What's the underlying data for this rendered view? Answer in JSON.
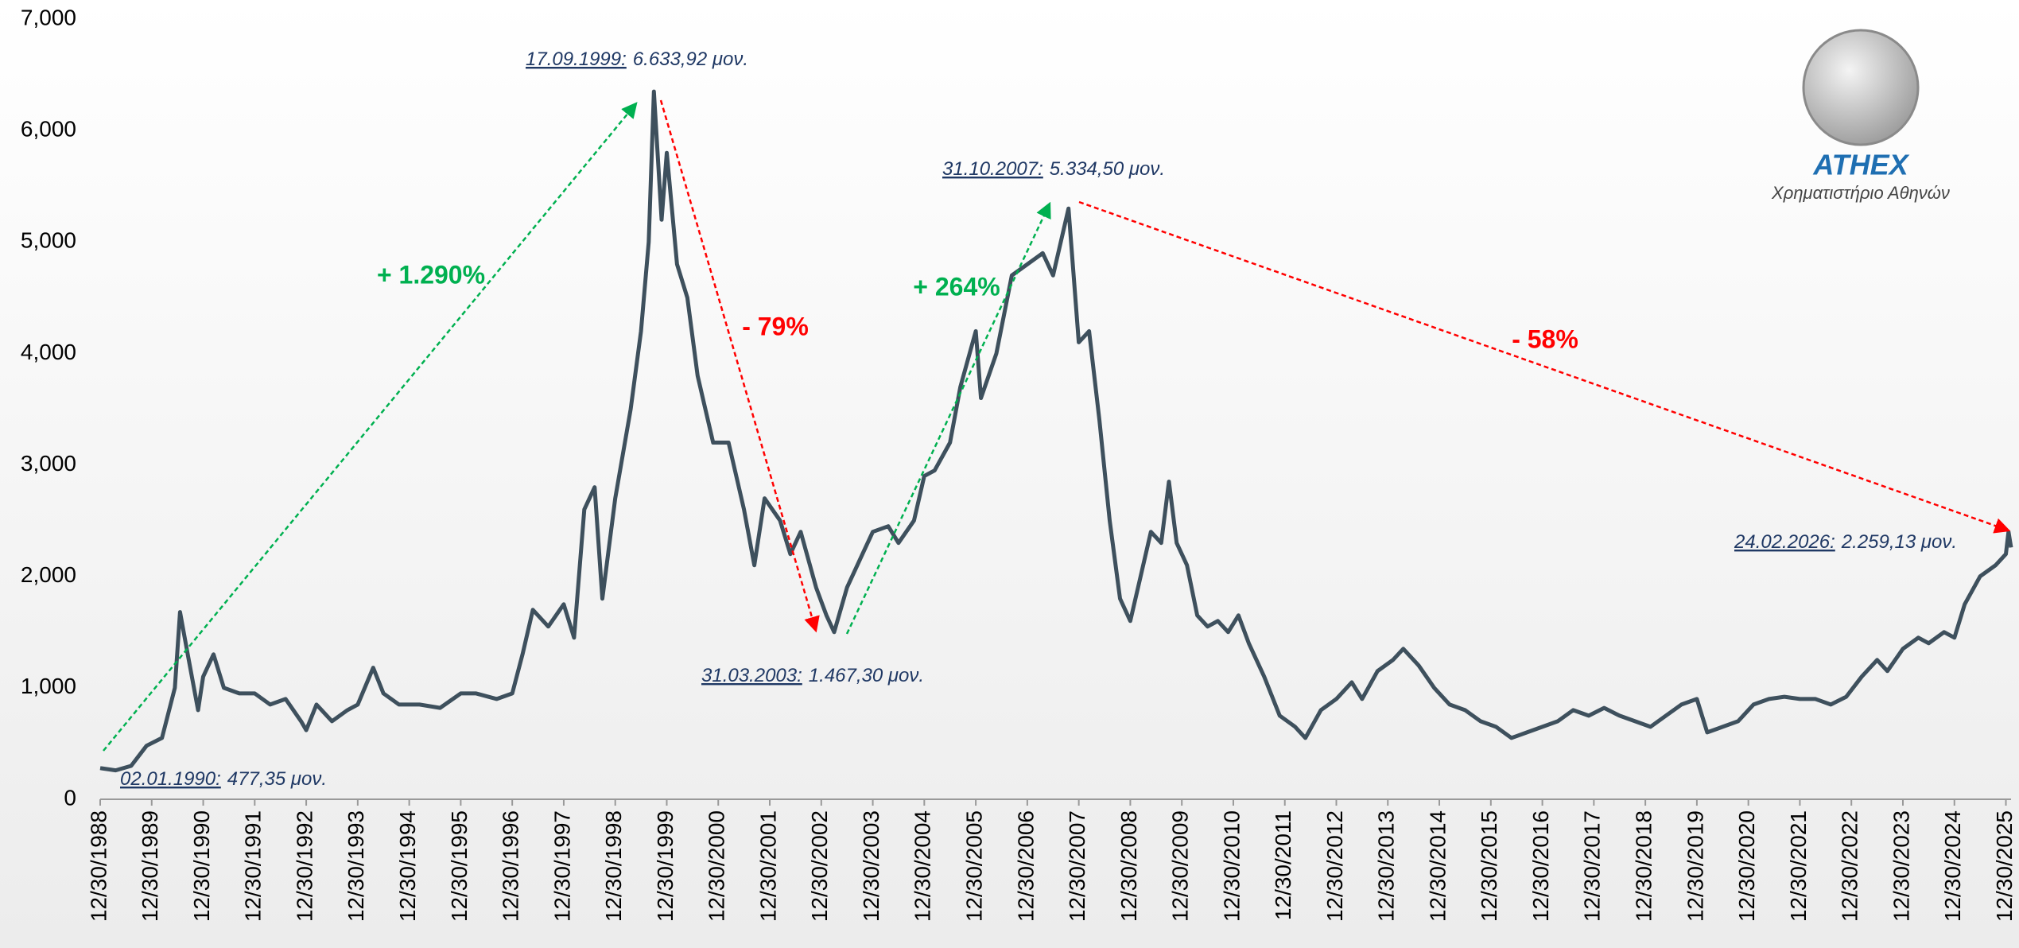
{
  "chart_data": {
    "type": "line",
    "x": [
      1989.0,
      1989.3,
      1989.6,
      1989.9,
      1990.2,
      1990.45,
      1990.55,
      1990.7,
      1990.9,
      1991.0,
      1991.2,
      1991.4,
      1991.7,
      1992.0,
      1992.3,
      1992.6,
      1992.9,
      1993.0,
      1993.2,
      1993.5,
      1993.8,
      1994.0,
      1994.3,
      1994.5,
      1994.8,
      1995.2,
      1995.6,
      1996.0,
      1996.3,
      1996.7,
      1997.0,
      1997.2,
      1997.4,
      1997.7,
      1998.0,
      1998.2,
      1998.4,
      1998.6,
      1998.75,
      1999.0,
      1999.3,
      1999.5,
      1999.65,
      1999.75,
      1999.9,
      2000.0,
      2000.2,
      2000.4,
      2000.6,
      2000.9,
      2001.2,
      2001.5,
      2001.7,
      2001.9,
      2002.2,
      2002.4,
      2002.6,
      2002.9,
      2003.1,
      2003.25,
      2003.5,
      2003.8,
      2004.0,
      2004.3,
      2004.5,
      2004.8,
      2005.0,
      2005.2,
      2005.5,
      2005.7,
      2006.0,
      2006.1,
      2006.4,
      2006.7,
      2007.0,
      2007.3,
      2007.5,
      2007.8,
      2008.0,
      2008.2,
      2008.4,
      2008.6,
      2008.8,
      2009.0,
      2009.2,
      2009.4,
      2009.6,
      2009.75,
      2009.9,
      2010.1,
      2010.3,
      2010.5,
      2010.7,
      2010.9,
      2011.1,
      2011.3,
      2011.6,
      2011.9,
      2012.2,
      2012.4,
      2012.7,
      2013.0,
      2013.3,
      2013.5,
      2013.8,
      2014.1,
      2014.3,
      2014.6,
      2014.9,
      2015.2,
      2015.5,
      2015.8,
      2016.1,
      2016.4,
      2016.7,
      2017.0,
      2017.3,
      2017.6,
      2017.9,
      2018.2,
      2018.5,
      2018.8,
      2019.1,
      2019.4,
      2019.7,
      2020.0,
      2020.2,
      2020.5,
      2020.8,
      2021.1,
      2021.4,
      2021.7,
      2022.0,
      2022.3,
      2022.6,
      2022.9,
      2023.2,
      2023.5,
      2023.7,
      2024.0,
      2024.3,
      2024.5,
      2024.8,
      2025.0,
      2025.2,
      2025.5,
      2025.8,
      2026.0,
      2026.05,
      2026.1
    ],
    "series": [
      {
        "color": "#3e505d",
        "values": [
          280,
          260,
          300,
          480,
          550,
          1000,
          1680,
          1300,
          800,
          1100,
          1300,
          1000,
          950,
          950,
          850,
          900,
          700,
          620,
          850,
          700,
          800,
          850,
          1180,
          950,
          850,
          850,
          820,
          950,
          950,
          900,
          950,
          1300,
          1700,
          1550,
          1750,
          1450,
          2600,
          2800,
          1800,
          2700,
          3500,
          4200,
          5000,
          6350,
          5200,
          5800,
          4800,
          4500,
          3800,
          3200,
          3200,
          2600,
          2100,
          2700,
          2500,
          2200,
          2400,
          1900,
          1650,
          1500,
          1900,
          2200,
          2400,
          2450,
          2300,
          2500,
          2900,
          2950,
          3200,
          3700,
          4200,
          3600,
          4000,
          4700,
          4800,
          4900,
          4700,
          5300,
          4100,
          4200,
          3400,
          2500,
          1800,
          1600,
          2000,
          2400,
          2300,
          2850,
          2300,
          2100,
          1650,
          1550,
          1600,
          1500,
          1650,
          1400,
          1100,
          750,
          650,
          550,
          800,
          900,
          1050,
          900,
          1150,
          1250,
          1350,
          1200,
          1000,
          850,
          800,
          700,
          650,
          550,
          600,
          650,
          700,
          800,
          750,
          820,
          750,
          700,
          650,
          750,
          850,
          900,
          600,
          650,
          700,
          850,
          900,
          920,
          900,
          900,
          850,
          920,
          1100,
          1250,
          1150,
          1350,
          1450,
          1400,
          1500,
          1450,
          1750,
          2000,
          2100,
          2200,
          2400,
          2259
        ]
      }
    ],
    "xlim": [
      1989,
      2026.1
    ],
    "xticks": [
      {
        "value": 1989,
        "label": "12/30/1988"
      },
      {
        "value": 1990,
        "label": "12/30/1989"
      },
      {
        "value": 1991,
        "label": "12/30/1990"
      },
      {
        "value": 1992,
        "label": "12/30/1991"
      },
      {
        "value": 1993,
        "label": "12/30/1992"
      },
      {
        "value": 1994,
        "label": "12/30/1993"
      },
      {
        "value": 1995,
        "label": "12/30/1994"
      },
      {
        "value": 1996,
        "label": "12/30/1995"
      },
      {
        "value": 1997,
        "label": "12/30/1996"
      },
      {
        "value": 1998,
        "label": "12/30/1997"
      },
      {
        "value": 1999,
        "label": "12/30/1998"
      },
      {
        "value": 2000,
        "label": "12/30/1999"
      },
      {
        "value": 2001,
        "label": "12/30/2000"
      },
      {
        "value": 2002,
        "label": "12/30/2001"
      },
      {
        "value": 2003,
        "label": "12/30/2002"
      },
      {
        "value": 2004,
        "label": "12/30/2003"
      },
      {
        "value": 2005,
        "label": "12/30/2004"
      },
      {
        "value": 2006,
        "label": "12/30/2005"
      },
      {
        "value": 2007,
        "label": "12/30/2006"
      },
      {
        "value": 2008,
        "label": "12/30/2007"
      },
      {
        "value": 2009,
        "label": "12/30/2008"
      },
      {
        "value": 2010,
        "label": "12/30/2009"
      },
      {
        "value": 2011,
        "label": "12/30/2010"
      },
      {
        "value": 2012,
        "label": "12/30/2011"
      },
      {
        "value": 2013,
        "label": "12/30/2012"
      },
      {
        "value": 2014,
        "label": "12/30/2013"
      },
      {
        "value": 2015,
        "label": "12/30/2014"
      },
      {
        "value": 2016,
        "label": "12/30/2015"
      },
      {
        "value": 2017,
        "label": "12/30/2016"
      },
      {
        "value": 2018,
        "label": "12/30/2017"
      },
      {
        "value": 2019,
        "label": "12/30/2018"
      },
      {
        "value": 2020,
        "label": "12/30/2019"
      },
      {
        "value": 2021,
        "label": "12/30/2020"
      },
      {
        "value": 2022,
        "label": "12/30/2021"
      },
      {
        "value": 2023,
        "label": "12/30/2022"
      },
      {
        "value": 2024,
        "label": "12/30/2023"
      },
      {
        "value": 2025,
        "label": "12/30/2024"
      },
      {
        "value": 2026,
        "label": "12/30/2025"
      }
    ],
    "ylim": [
      0,
      7000
    ],
    "yticks": [
      0,
      {
        "value": 1000,
        "label": "1,000"
      },
      {
        "value": 2000,
        "label": "2,000"
      },
      {
        "value": 3000,
        "label": "3,000"
      },
      {
        "value": 4000,
        "label": "4,000"
      },
      {
        "value": 5000,
        "label": "5,000"
      },
      {
        "value": 6000,
        "label": "6,000"
      },
      {
        "value": 7000,
        "label": "7,000"
      }
    ],
    "annotations": [
      {
        "date": "02.01.1990:",
        "text": "477,35 μον."
      },
      {
        "date": "17.09.1999:",
        "text": "6.633,92 μον."
      },
      {
        "date": "31.03.2003:",
        "text": "1.467,30 μον."
      },
      {
        "date": "31.10.2007:",
        "text": "5.334,50 μον."
      },
      {
        "date": "24.02.2026:",
        "text": "2.259,13 μον."
      }
    ],
    "changes": [
      {
        "text": "+ 1.290%",
        "color": "#00b050"
      },
      {
        "text": "- 79%",
        "color": "#ff0000"
      },
      {
        "text": "+ 264%",
        "color": "#00b050"
      },
      {
        "text": "- 58%",
        "color": "#ff0000"
      }
    ]
  },
  "logo": {
    "name": "ATHEX",
    "subtitle": "Χρηματιστήριο Αθηνών"
  }
}
